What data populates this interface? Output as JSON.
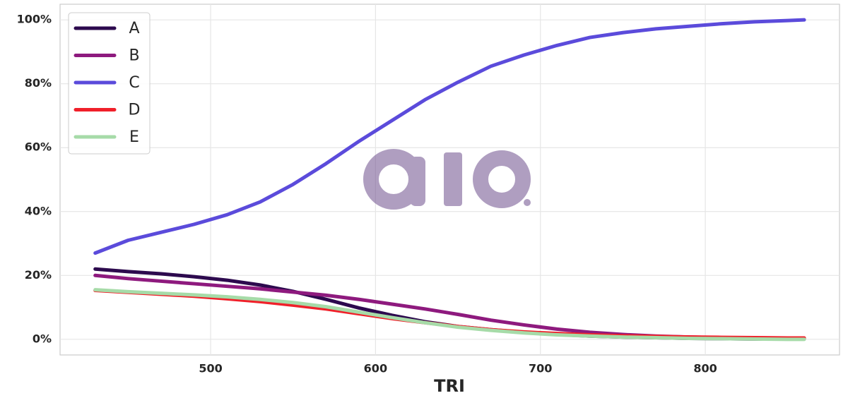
{
  "chart_data": {
    "type": "line",
    "xlabel": "TRI",
    "x": [
      430,
      450,
      470,
      490,
      510,
      530,
      550,
      570,
      590,
      610,
      630,
      650,
      670,
      690,
      710,
      730,
      750,
      770,
      790,
      810,
      830,
      850,
      860
    ],
    "series": [
      {
        "name": "A",
        "color": "#2d0a4e",
        "values": [
          22,
          21.2,
          20.5,
          19.6,
          18.5,
          17,
          15,
          12.5,
          9.8,
          7.5,
          5.5,
          4,
          3,
          2.2,
          1.5,
          1,
          0.7,
          0.5,
          0.3,
          0.2,
          0.1,
          0.1,
          0.1
        ]
      },
      {
        "name": "B",
        "color": "#8e1a7e",
        "values": [
          20,
          19,
          18.2,
          17.4,
          16.6,
          15.8,
          14.8,
          13.8,
          12.5,
          11,
          9.5,
          7.8,
          6,
          4.5,
          3.2,
          2.2,
          1.5,
          1,
          0.7,
          0.5,
          0.3,
          0.2,
          0.2
        ]
      },
      {
        "name": "C",
        "color": "#5b4bdb",
        "values": [
          27,
          31,
          33.5,
          36,
          39,
          43,
          48.5,
          55,
          62,
          68.5,
          75,
          80.5,
          85.5,
          89,
          92,
          94.5,
          96,
          97.2,
          98,
          98.8,
          99.4,
          99.8,
          100
        ]
      },
      {
        "name": "D",
        "color": "#f0202a",
        "values": [
          15.3,
          14.7,
          14.1,
          13.5,
          12.7,
          11.8,
          10.7,
          9.5,
          8,
          6.5,
          5.2,
          4,
          3,
          2.3,
          1.8,
          1.4,
          1.1,
          0.9,
          0.7,
          0.6,
          0.5,
          0.4,
          0.4
        ]
      },
      {
        "name": "E",
        "color": "#a6dba8",
        "values": [
          15.5,
          14.9,
          14.4,
          13.9,
          13.3,
          12.5,
          11.5,
          10.2,
          8.5,
          6.8,
          5.2,
          3.8,
          2.8,
          2,
          1.4,
          1,
          0.7,
          0.5,
          0.3,
          0.2,
          0.1,
          0,
          0
        ]
      }
    ],
    "xlim": [
      408.7,
      881.4
    ],
    "xticks": [
      500,
      600,
      700,
      800
    ],
    "ylim": [
      -4.9,
      104.9
    ],
    "yticks": [
      {
        "value": 0,
        "label": "0%"
      },
      {
        "value": 20,
        "label": "20%"
      },
      {
        "value": 40,
        "label": "40%"
      },
      {
        "value": 60,
        "label": "60%"
      },
      {
        "value": 80,
        "label": "80%"
      },
      {
        "value": 100,
        "label": "100%"
      }
    ],
    "grid": true,
    "legend": "upper-left"
  }
}
